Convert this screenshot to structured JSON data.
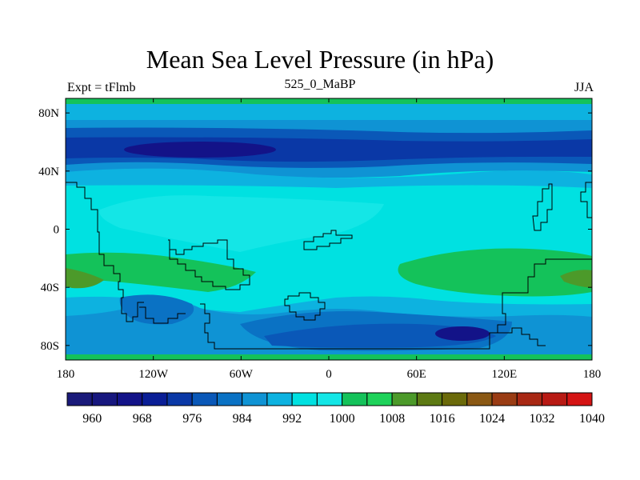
{
  "title": "Mean Sea Level Pressure (in hPa)",
  "left_string": "Expt = tFlmb",
  "center_string": "525_0_MaBP",
  "right_string": "JJA",
  "chart_data": {
    "type": "heatmap",
    "title": "Mean Sea Level Pressure (in hPa)",
    "units": "hPa",
    "xlim": [
      -180,
      180
    ],
    "ylim": [
      -90,
      90
    ],
    "x_ticks": [
      {
        "value": -180,
        "label": "180"
      },
      {
        "value": -120,
        "label": "120W"
      },
      {
        "value": -60,
        "label": "60W"
      },
      {
        "value": 0,
        "label": "0"
      },
      {
        "value": 60,
        "label": "60E"
      },
      {
        "value": 120,
        "label": "120E"
      },
      {
        "value": 180,
        "label": "180"
      }
    ],
    "y_ticks": [
      {
        "value": 80,
        "label": "80N"
      },
      {
        "value": 40,
        "label": "40N"
      },
      {
        "value": 0,
        "label": "0"
      },
      {
        "value": -40,
        "label": "40S"
      },
      {
        "value": -80,
        "label": "80S"
      }
    ],
    "colorbar": {
      "levels": [
        960,
        964,
        968,
        972,
        976,
        980,
        984,
        988,
        992,
        996,
        1000,
        1004,
        1008,
        1012,
        1016,
        1020,
        1024,
        1028,
        1032,
        1036,
        1040
      ],
      "labels": [
        "960",
        "968",
        "976",
        "984",
        "992",
        "1000",
        "1008",
        "1016",
        "1024",
        "1032",
        "1040"
      ],
      "colors": [
        "#1a1a7a",
        "#17177e",
        "#131388",
        "#0a1e96",
        "#0a38a6",
        "#0a58b8",
        "#0a72c4",
        "#0f93d4",
        "#0db2e0",
        "#00e1e1",
        "#14e6e6",
        "#14c25a",
        "#1ed25a",
        "#4c9a2a",
        "#5d7a14",
        "#6b6a0a",
        "#8a5814",
        "#9a3c14",
        "#a82814",
        "#b81a14",
        "#d41414"
      ]
    },
    "fields": {
      "ocean_base": "#14e6e6",
      "polar_cap": "#14c25a"
    }
  }
}
